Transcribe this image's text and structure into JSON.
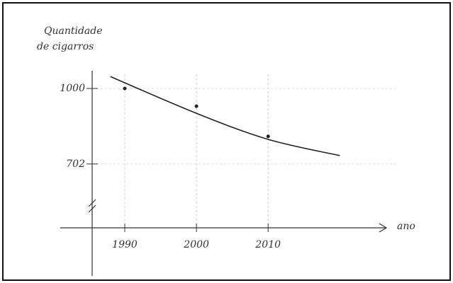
{
  "chart_data": {
    "type": "scatter",
    "y_label": "Quantidade\nde cigarros",
    "x_label": "ano",
    "x": [
      1990,
      2000,
      2010
    ],
    "series": [
      {
        "color": "#222222",
        "values": [
          1000,
          930,
          811
        ]
      }
    ],
    "trend": {
      "x": [
        1988,
        2000,
        2010,
        2020
      ],
      "values": [
        1047,
        902,
        799,
        735
      ],
      "color": "#222222"
    },
    "xlim": [
      1981,
      2026
    ],
    "ylim": [
      450,
      1070
    ],
    "xticks": [
      1990,
      2000,
      2010
    ],
    "yticks": [
      702,
      1000
    ],
    "grid": true
  }
}
